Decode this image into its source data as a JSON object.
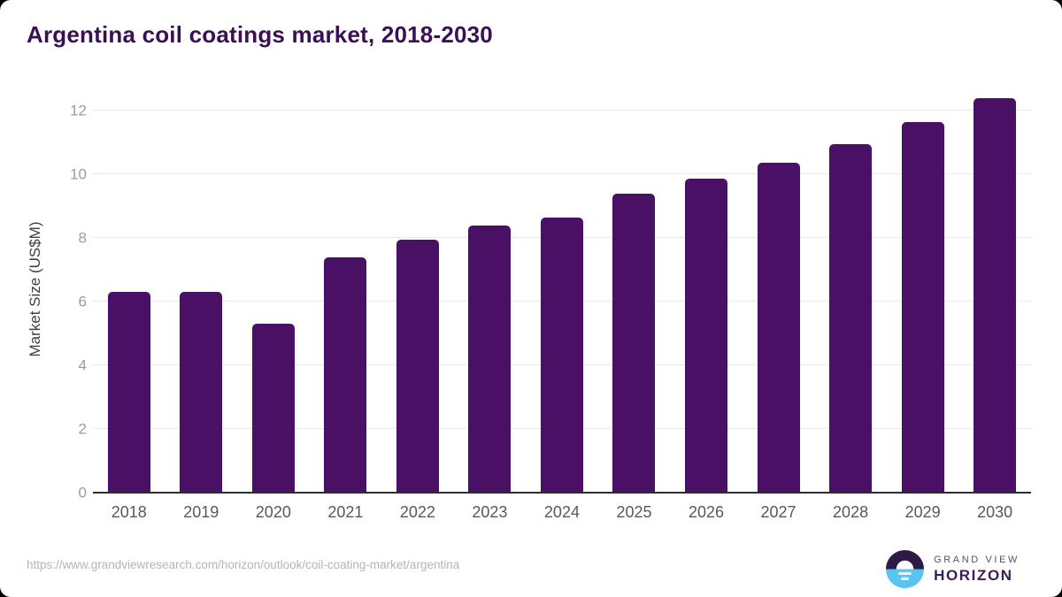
{
  "header": {
    "title": "Argentina coil coatings market, 2018-2030"
  },
  "chart_data": {
    "type": "bar",
    "title": "Argentina coil coatings market, 2018-2030",
    "categories": [
      "2018",
      "2019",
      "2020",
      "2021",
      "2022",
      "2023",
      "2024",
      "2025",
      "2026",
      "2027",
      "2028",
      "2029",
      "2030"
    ],
    "values": [
      6.3,
      6.3,
      5.3,
      7.4,
      7.95,
      8.4,
      8.65,
      9.4,
      9.85,
      10.35,
      10.95,
      11.65,
      12.4
    ],
    "xlabel": "",
    "ylabel": "Market Size (US$M)",
    "yticks": [
      0,
      2,
      4,
      6,
      8,
      10,
      12
    ],
    "ylim": [
      0,
      12.75
    ],
    "grid": "horizontal",
    "legend": "none",
    "bar_color": "#491065"
  },
  "colors": {
    "bar": "#491065",
    "title": "#3b1053",
    "gridline": "#e9e9e9",
    "axis_line": "#2d2d2d",
    "logo_dark_purple": "#2e1a47",
    "logo_blue": "#5ac4f1"
  },
  "footer": {
    "url": "https://www.grandviewresearch.com/horizon/outlook/coil-coating-market/argentina",
    "logo": {
      "line1": "GRAND VIEW",
      "line2": "HORIZON"
    }
  }
}
